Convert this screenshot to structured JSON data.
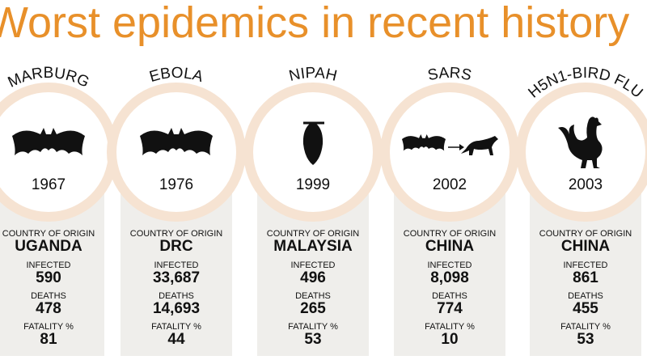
{
  "title": "Worst epidemics in recent history",
  "columns": [
    {
      "name": "MARBURG",
      "year": "1967",
      "origin_label": "COUNTRY OF ORIGIN",
      "country": "UGANDA",
      "infected_label": "INFECTED",
      "infected": "590",
      "deaths_label": "DEATHS",
      "deaths": "478",
      "fatality_label": "FATALITY %",
      "fatality": "81"
    },
    {
      "name": "EBOLA",
      "year": "1976",
      "origin_label": "COUNTRY OF ORIGIN",
      "country": "DRC",
      "infected_label": "INFECTED",
      "infected": "33,687",
      "deaths_label": "DEATHS",
      "deaths": "14,693",
      "fatality_label": "FATALITY %",
      "fatality": "44"
    },
    {
      "name": "NIPAH",
      "year": "1999",
      "origin_label": "COUNTRY OF ORIGIN",
      "country": "MALAYSIA",
      "infected_label": "INFECTED",
      "infected": "496",
      "deaths_label": "DEATHS",
      "deaths": "265",
      "fatality_label": "FATALITY %",
      "fatality": "53"
    },
    {
      "name": "SARS",
      "year": "2002",
      "origin_label": "COUNTRY OF ORIGIN",
      "country": "CHINA",
      "infected_label": "INFECTED",
      "infected": "8,098",
      "deaths_label": "DEATHS",
      "deaths": "774",
      "fatality_label": "FATALITY %",
      "fatality": "10"
    },
    {
      "name": "H5N1-BIRD FLU",
      "year": "2003",
      "origin_label": "COUNTRY OF ORIGIN",
      "country": "CHINA",
      "infected_label": "INFECTED",
      "infected": "861",
      "deaths_label": "DEATHS",
      "deaths": "455",
      "fatality_label": "FATALITY %",
      "fatality": "53"
    }
  ]
}
